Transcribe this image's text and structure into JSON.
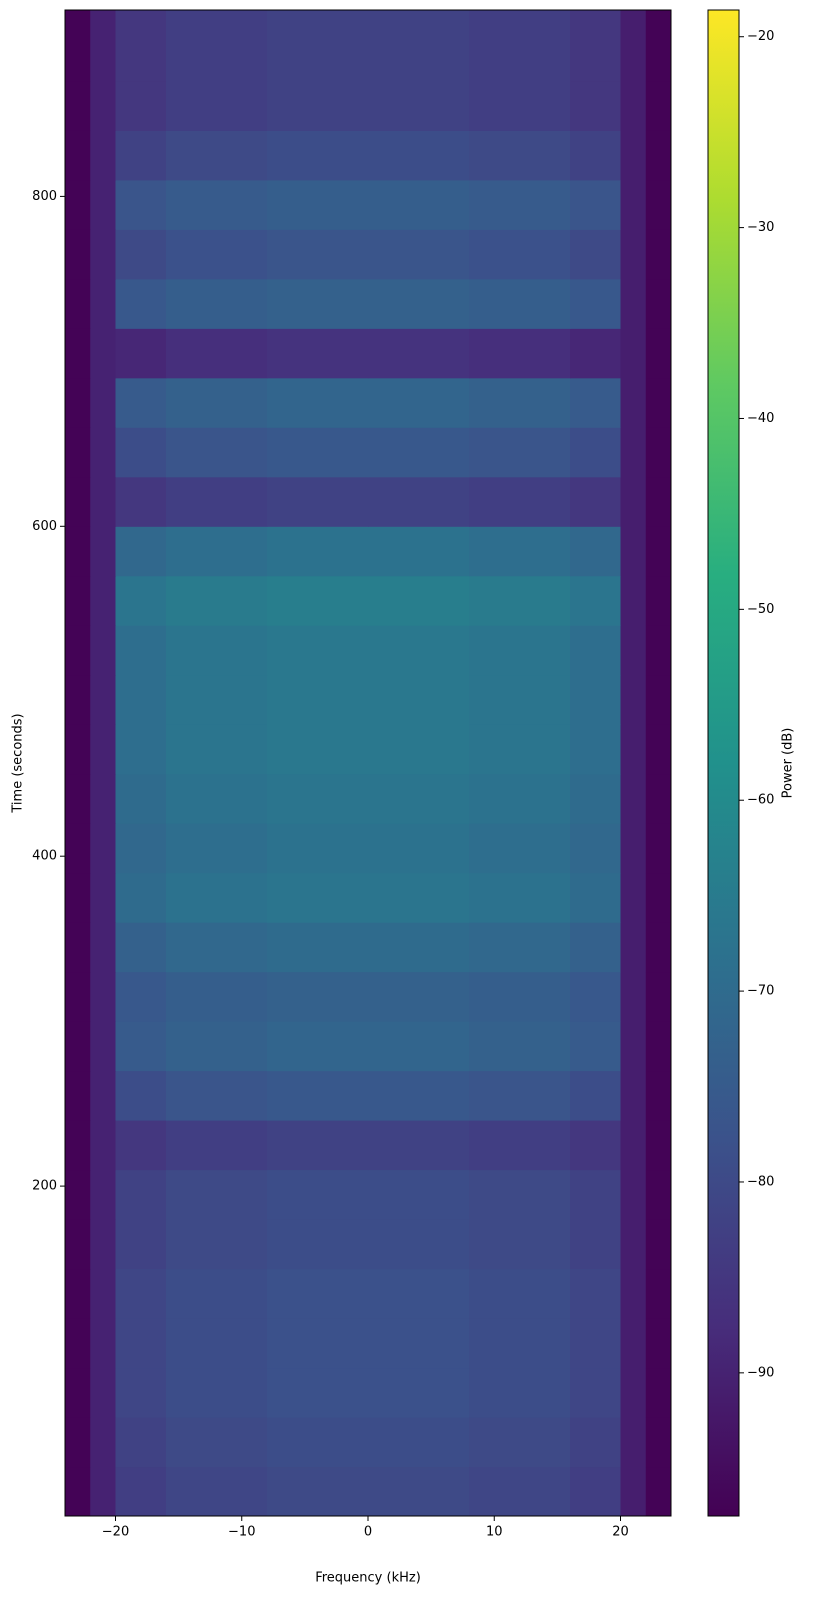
{
  "chart_data": {
    "type": "heatmap",
    "xlabel": "Frequency (kHz)",
    "ylabel": "Time (seconds)",
    "colorbar_label": "Power (dB)",
    "x": [
      -24,
      -22,
      -20,
      -16,
      -8,
      0,
      8,
      16,
      20,
      22,
      24
    ],
    "y": [
      0,
      30,
      60,
      90,
      120,
      150,
      180,
      210,
      240,
      270,
      300,
      330,
      360,
      390,
      420,
      450,
      480,
      510,
      540,
      570,
      600,
      630,
      660,
      690,
      720,
      750,
      780,
      810,
      840,
      870,
      913
    ],
    "z": [
      [
        -97,
        -90,
        -83,
        -81,
        -80,
        -80,
        -81,
        -83,
        -91,
        -97
      ],
      [
        -97,
        -90,
        -82,
        -80,
        -79,
        -79,
        -80,
        -82,
        -91,
        -97
      ],
      [
        -97,
        -90,
        -81,
        -79,
        -78,
        -78,
        -79,
        -81,
        -91,
        -97
      ],
      [
        -97,
        -90,
        -81,
        -79,
        -78,
        -78,
        -79,
        -81,
        -91,
        -97
      ],
      [
        -97,
        -90,
        -81,
        -79,
        -78,
        -78,
        -79,
        -81,
        -91,
        -97
      ],
      [
        -97,
        -90,
        -82,
        -80,
        -79,
        -79,
        -80,
        -82,
        -91,
        -97
      ],
      [
        -97,
        -90,
        -82,
        -80,
        -79,
        -79,
        -80,
        -82,
        -91,
        -97
      ],
      [
        -97,
        -90,
        -85,
        -83,
        -82,
        -82,
        -83,
        -85,
        -91,
        -97
      ],
      [
        -97,
        -90,
        -79,
        -77,
        -76,
        -76,
        -77,
        -79,
        -91,
        -97
      ],
      [
        -97,
        -90,
        -75,
        -73,
        -72,
        -72,
        -73,
        -75,
        -91,
        -97
      ],
      [
        -97,
        -90,
        -76,
        -74,
        -73,
        -73,
        -74,
        -76,
        -91,
        -97
      ],
      [
        -97,
        -90,
        -73,
        -71,
        -70,
        -70,
        -71,
        -73,
        -91,
        -97
      ],
      [
        -97,
        -90,
        -70,
        -68,
        -67,
        -67,
        -68,
        -70,
        -91,
        -97
      ],
      [
        -97,
        -90,
        -71,
        -69,
        -68,
        -68,
        -69,
        -71,
        -91,
        -97
      ],
      [
        -97,
        -90,
        -70,
        -68,
        -67,
        -67,
        -68,
        -70,
        -91,
        -97
      ],
      [
        -97,
        -90,
        -69,
        -67,
        -66,
        -66,
        -67,
        -69,
        -91,
        -97
      ],
      [
        -97,
        -90,
        -69,
        -67,
        -66,
        -66,
        -67,
        -69,
        -91,
        -97
      ],
      [
        -97,
        -90,
        -69,
        -67,
        -66,
        -66,
        -67,
        -69,
        -91,
        -97
      ],
      [
        -97,
        -90,
        -67,
        -65,
        -64,
        -64,
        -65,
        -67,
        -91,
        -97
      ],
      [
        -97,
        -90,
        -71,
        -69,
        -68,
        -68,
        -69,
        -71,
        -91,
        -97
      ],
      [
        -97,
        -90,
        -85,
        -83,
        -82,
        -82,
        -83,
        -85,
        -91,
        -97
      ],
      [
        -97,
        -90,
        -79,
        -77,
        -76,
        -76,
        -77,
        -79,
        -91,
        -97
      ],
      [
        -97,
        -90,
        -75,
        -73,
        -72,
        -72,
        -73,
        -75,
        -91,
        -97
      ],
      [
        -97,
        -90,
        -89,
        -87,
        -86,
        -86,
        -87,
        -89,
        -91,
        -97
      ],
      [
        -97,
        -90,
        -76,
        -74,
        -73,
        -73,
        -74,
        -76,
        -91,
        -97
      ],
      [
        -97,
        -90,
        -80,
        -78,
        -77,
        -77,
        -78,
        -80,
        -91,
        -97
      ],
      [
        -97,
        -90,
        -77,
        -75,
        -74,
        -74,
        -75,
        -77,
        -91,
        -97
      ],
      [
        -97,
        -90,
        -82,
        -80,
        -79,
        -79,
        -80,
        -82,
        -91,
        -97
      ],
      [
        -97,
        -90,
        -85,
        -83,
        -82,
        -82,
        -83,
        -85,
        -91,
        -97
      ],
      [
        -97,
        -90,
        -85,
        -83,
        -82,
        -82,
        -83,
        -85,
        -91,
        -97
      ]
    ],
    "xlim": [
      -24,
      24
    ],
    "ylim": [
      0,
      913
    ],
    "clim": [
      -97.5,
      -18.6
    ],
    "xticks": [
      {
        "value": -20,
        "label": "−20"
      },
      {
        "value": -10,
        "label": "−10"
      },
      0,
      10,
      20
    ],
    "yticks": [
      200,
      400,
      600,
      800
    ],
    "cticks": [
      {
        "value": -90,
        "label": "−90"
      },
      {
        "value": -80,
        "label": "−80"
      },
      {
        "value": -70,
        "label": "−70"
      },
      {
        "value": -60,
        "label": "−60"
      },
      {
        "value": -50,
        "label": "−50"
      },
      {
        "value": -40,
        "label": "−40"
      },
      {
        "value": -30,
        "label": "−30"
      },
      {
        "value": -20,
        "label": "−20"
      }
    ],
    "colorscale": [
      "#440154",
      "#472d7b",
      "#3b528b",
      "#2c728e",
      "#21918c",
      "#28ae80",
      "#5ec962",
      "#addc30",
      "#fde725"
    ]
  }
}
